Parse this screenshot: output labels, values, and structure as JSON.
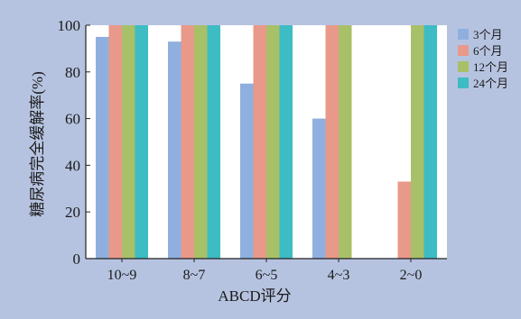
{
  "colors": {
    "figure_background": "#b6c3e0",
    "plot_background": "#ffffff"
  },
  "chart_data": {
    "type": "bar",
    "title": "",
    "xlabel": "ABCD评分",
    "ylabel": "糖尿病完全缓解率(%)",
    "ylim": [
      0,
      100
    ],
    "yticks": [
      0,
      20,
      40,
      60,
      80,
      100
    ],
    "categories": [
      "10~9",
      "8~7",
      "6~5",
      "4~3",
      "2~0"
    ],
    "series": [
      {
        "name": "3个月",
        "color": "#8fb0df",
        "values": [
          95,
          93,
          75,
          60,
          0
        ]
      },
      {
        "name": "6个月",
        "color": "#e8998a",
        "values": [
          100,
          100,
          100,
          100,
          33
        ]
      },
      {
        "name": "12个月",
        "color": "#a8c068",
        "values": [
          100,
          100,
          100,
          100,
          100
        ]
      },
      {
        "name": "24个月",
        "color": "#3dbcc4",
        "values": [
          100,
          100,
          100,
          0,
          100
        ]
      }
    ],
    "grid": false,
    "legend_position": "top-right"
  }
}
